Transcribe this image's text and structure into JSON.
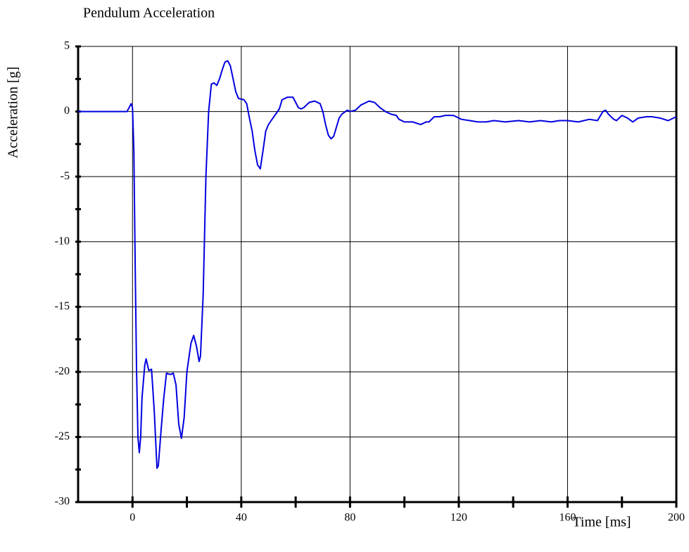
{
  "chart_data": {
    "type": "line",
    "title": "Pendulum Acceleration",
    "x_label": "Time [ms]",
    "y_label": "Acceleration [g]",
    "xlim": [
      -20,
      200
    ],
    "ylim": [
      -30,
      5
    ],
    "xticks": [
      0,
      40,
      80,
      120,
      160,
      200
    ],
    "yticks": [
      5,
      0,
      -5,
      -10,
      -15,
      -20,
      -25,
      -30
    ],
    "grid": true,
    "x": [
      -20,
      -15,
      -10,
      -5,
      -2,
      -0.5,
      0,
      0.5,
      1,
      1.5,
      2,
      2.5,
      3,
      3.5,
      4.5,
      5,
      6,
      7,
      8,
      9,
      9.5,
      10.5,
      11.5,
      12.5,
      14,
      15,
      16,
      17,
      18,
      19,
      20,
      21.5,
      22.5,
      23.5,
      24.5,
      25,
      26,
      27,
      28,
      29,
      30,
      31,
      32,
      33,
      34,
      35,
      36,
      37,
      38,
      39,
      41,
      42,
      43,
      44,
      45,
      46,
      47,
      48,
      49,
      50,
      52,
      54,
      55,
      57,
      59,
      60,
      61,
      62,
      63,
      64,
      65,
      67,
      69,
      70,
      71,
      72,
      73,
      74,
      75,
      76,
      77,
      79,
      80,
      82,
      84,
      87,
      89,
      91,
      93,
      95,
      97,
      98,
      100,
      103,
      106,
      108,
      109,
      111,
      113,
      115,
      118,
      121,
      124,
      127,
      130,
      133,
      137,
      142,
      146,
      150,
      154,
      157,
      160,
      164,
      168,
      171,
      173,
      174,
      175,
      177,
      178,
      180,
      182,
      184,
      186,
      189,
      191,
      194,
      197,
      200
    ],
    "series": [
      {
        "name": "Pendulum Acceleration",
        "color": "#0000e0",
        "values": [
          0,
          0,
          0,
          0,
          0,
          0.6,
          0.3,
          -3,
          -12,
          -20,
          -25,
          -26.2,
          -25,
          -22,
          -19.5,
          -19,
          -19.9,
          -19.8,
          -23,
          -27.4,
          -27.2,
          -24.5,
          -22,
          -20.1,
          -20.2,
          -20.1,
          -21,
          -24,
          -25.1,
          -23.5,
          -20,
          -17.8,
          -17.2,
          -18,
          -19.2,
          -18.8,
          -14,
          -5,
          0,
          2.1,
          2.2,
          2,
          2.5,
          3.2,
          3.8,
          3.9,
          3.5,
          2.5,
          1.5,
          1,
          0.9,
          0.6,
          -0.5,
          -1.5,
          -3,
          -4.1,
          -4.4,
          -3,
          -1.5,
          -1,
          -0.4,
          0.2,
          0.9,
          1.1,
          1.1,
          0.7,
          0.3,
          0.2,
          0.3,
          0.5,
          0.7,
          0.8,
          0.6,
          0,
          -1,
          -1.8,
          -2.1,
          -1.9,
          -1.2,
          -0.5,
          -0.2,
          0.1,
          0,
          0.1,
          0.5,
          0.8,
          0.7,
          0.3,
          0,
          -0.2,
          -0.3,
          -0.6,
          -0.8,
          -0.8,
          -1,
          -0.8,
          -0.8,
          -0.4,
          -0.4,
          -0.3,
          -0.3,
          -0.6,
          -0.7,
          -0.8,
          -0.8,
          -0.7,
          -0.8,
          -0.7,
          -0.8,
          -0.7,
          -0.8,
          -0.7,
          -0.7,
          -0.8,
          -0.6,
          -0.7,
          0,
          0.1,
          -0.2,
          -0.6,
          -0.7,
          -0.3,
          -0.5,
          -0.8,
          -0.5,
          -0.4,
          -0.4,
          -0.5,
          -0.7,
          -0.4
        ]
      }
    ]
  }
}
